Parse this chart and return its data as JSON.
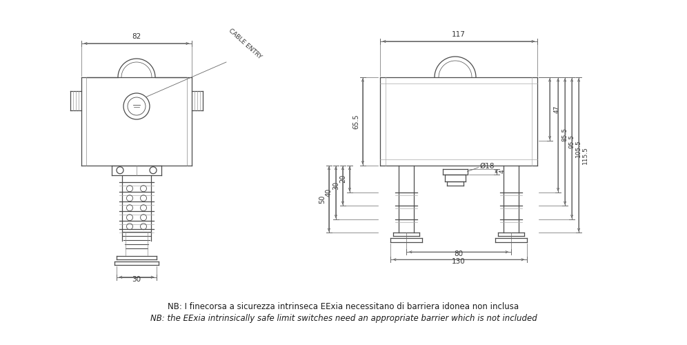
{
  "bg_color": "#ffffff",
  "line_color": "#4a4a4a",
  "dim_color": "#666666",
  "text_color": "#333333",
  "note_line1": "NB: I finecorsa a sicurezza intrinseca EExia necessitano di barriera idonea non inclusa",
  "note_line2": "NB: the EExia intrinsically safe limit switches need an appropriate barrier which is not included"
}
